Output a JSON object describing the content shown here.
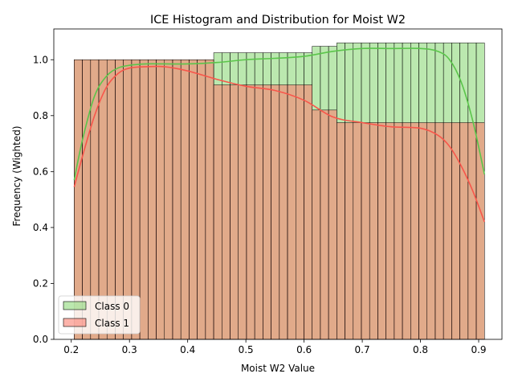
{
  "chart_data": {
    "type": "bar",
    "title": "ICE Histogram and Distribution for Moist W2",
    "xlabel": "Moist W2 Value",
    "ylabel": "Frequency (Wighted)",
    "xlim": [
      0.17,
      0.94
    ],
    "ylim": [
      0.0,
      1.11
    ],
    "x_ticks": [
      "0.2",
      "0.3",
      "0.4",
      "0.5",
      "0.6",
      "0.7",
      "0.8",
      "0.9"
    ],
    "y_ticks": [
      "0.0",
      "0.2",
      "0.4",
      "0.6",
      "0.8",
      "1.0"
    ],
    "bins": {
      "start": 0.205,
      "end": 0.91,
      "count": 50
    },
    "legend": {
      "position": "lower-left"
    },
    "series": [
      {
        "name": "Class 0",
        "color": "#8ed97a",
        "line_color": "#5bc54b",
        "steps": [
          {
            "x0": 0.205,
            "x1": 0.445,
            "value": 1.0
          },
          {
            "x0": 0.445,
            "x1": 0.614,
            "value": 1.025
          },
          {
            "x0": 0.614,
            "x1": 0.656,
            "value": 1.048
          },
          {
            "x0": 0.656,
            "x1": 0.91,
            "value": 1.06
          }
        ],
        "kde": [
          [
            0.205,
            0.57
          ],
          [
            0.22,
            0.72
          ],
          [
            0.24,
            0.87
          ],
          [
            0.26,
            0.94
          ],
          [
            0.28,
            0.97
          ],
          [
            0.3,
            0.98
          ],
          [
            0.33,
            0.985
          ],
          [
            0.36,
            0.985
          ],
          [
            0.4,
            0.985
          ],
          [
            0.45,
            0.99
          ],
          [
            0.5,
            1.0
          ],
          [
            0.55,
            1.005
          ],
          [
            0.6,
            1.012
          ],
          [
            0.65,
            1.03
          ],
          [
            0.7,
            1.04
          ],
          [
            0.75,
            1.04
          ],
          [
            0.8,
            1.04
          ],
          [
            0.83,
            1.03
          ],
          [
            0.85,
            1.0
          ],
          [
            0.87,
            0.92
          ],
          [
            0.89,
            0.78
          ],
          [
            0.91,
            0.59
          ]
        ]
      },
      {
        "name": "Class 1",
        "color": "#fa8072",
        "line_color": "#f8564b",
        "steps": [
          {
            "x0": 0.205,
            "x1": 0.445,
            "value": 1.0
          },
          {
            "x0": 0.445,
            "x1": 0.614,
            "value": 0.91
          },
          {
            "x0": 0.614,
            "x1": 0.656,
            "value": 0.82
          },
          {
            "x0": 0.656,
            "x1": 0.91,
            "value": 0.775
          }
        ],
        "kde": [
          [
            0.205,
            0.545
          ],
          [
            0.22,
            0.66
          ],
          [
            0.24,
            0.8
          ],
          [
            0.26,
            0.9
          ],
          [
            0.28,
            0.95
          ],
          [
            0.3,
            0.97
          ],
          [
            0.33,
            0.975
          ],
          [
            0.36,
            0.975
          ],
          [
            0.4,
            0.96
          ],
          [
            0.45,
            0.93
          ],
          [
            0.5,
            0.905
          ],
          [
            0.55,
            0.89
          ],
          [
            0.6,
            0.855
          ],
          [
            0.65,
            0.795
          ],
          [
            0.7,
            0.775
          ],
          [
            0.75,
            0.76
          ],
          [
            0.8,
            0.755
          ],
          [
            0.83,
            0.73
          ],
          [
            0.85,
            0.69
          ],
          [
            0.87,
            0.62
          ],
          [
            0.89,
            0.53
          ],
          [
            0.91,
            0.42
          ]
        ]
      }
    ]
  }
}
